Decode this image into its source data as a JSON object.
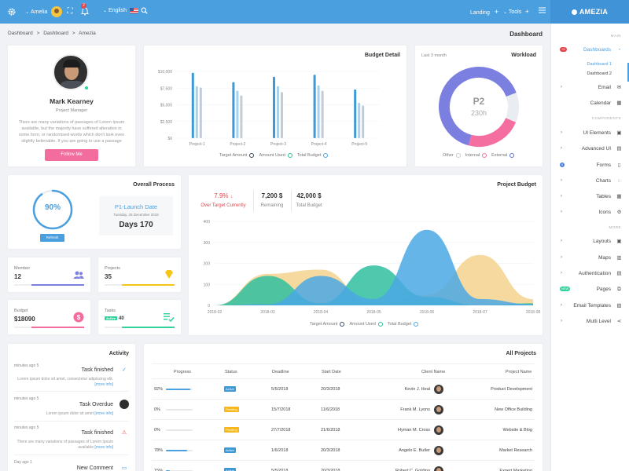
{
  "topbar": {
    "user_name": "Amelia",
    "notification_count": "2",
    "language": "English",
    "landing": "Landing",
    "tools": "Tools",
    "brand": "AMEZIA"
  },
  "breadcrumb": [
    "Dashboard",
    ">",
    "Dashboard",
    ">",
    "Amezia"
  ],
  "page_title": "Dashboard",
  "profile": {
    "name": "Mark Kearney",
    "role": "Project Manager",
    "description": "There are many variations of passages of Lorem Ipsum available, but the majority have suffered alteration in some form, or randomised words which don't look even slightly believable. If you are going to use a passage",
    "follow_label": "Follow Me"
  },
  "budget_detail": {
    "title": "Budget Detail",
    "legend": [
      "Target Amount",
      "Amount Used",
      "Total Budget"
    ],
    "colors": {
      "target": "#3d9ad6",
      "used": "#a9d2ec",
      "total": "#c3ccd6"
    }
  },
  "chart_data": [
    {
      "type": "bar",
      "title": "Budget Detail",
      "categories": [
        "Project-1",
        "Project-2",
        "Project-3",
        "Project-4",
        "Project-5"
      ],
      "ylim": [
        0,
        10000
      ],
      "yticks": [
        "$0",
        "$2,500",
        "$5,000",
        "$7,500",
        "$10,000"
      ],
      "series": [
        {
          "name": "Target Amount",
          "values": [
            9800,
            8400,
            9200,
            9500,
            7300
          ]
        },
        {
          "name": "Amount Used",
          "values": [
            7800,
            7100,
            7800,
            7900,
            5300
          ]
        },
        {
          "name": "Total Budget",
          "values": [
            7600,
            6400,
            6900,
            7100,
            4900
          ]
        }
      ]
    },
    {
      "type": "pie",
      "title": "Workload",
      "subtitle": "Last 3 month",
      "center_label": "P2",
      "center_sub": "230h",
      "series": [
        {
          "name": "Other",
          "values": [
            65
          ],
          "color": "#7a7fe0"
        },
        {
          "name": "Internal",
          "values": [
            12
          ],
          "color": "#e9ecf1"
        },
        {
          "name": "External",
          "values": [
            23
          ],
          "color": "#f46fa0"
        }
      ]
    },
    {
      "type": "area",
      "title": "Project Budget",
      "x": [
        "2018-02",
        "2018-03",
        "2018-04",
        "2018-05",
        "2018-06",
        "2018-07",
        "2018-08"
      ],
      "ylim": [
        0,
        400
      ],
      "yticks": [
        "0",
        "100",
        "200",
        "300",
        "400"
      ],
      "series": [
        {
          "name": "Target Amount",
          "values": [
            0,
            150,
            170,
            0,
            50,
            240,
            30
          ],
          "color": "#f4d28d"
        },
        {
          "name": "Amount Used",
          "values": [
            0,
            140,
            10,
            190,
            40,
            0,
            10
          ],
          "color": "#2fbf9f"
        },
        {
          "name": "Total Budget",
          "values": [
            0,
            5,
            140,
            30,
            360,
            30,
            5
          ],
          "color": "#4aa8e4"
        }
      ]
    }
  ],
  "workload": {
    "title": "Workload",
    "subtitle": "Last 3 month",
    "center_label": "P2",
    "center_sub": "230h",
    "legend": [
      "Other",
      "Internal",
      "External"
    ]
  },
  "overall_process": {
    "title": "Overall Process",
    "percent_label": "90%",
    "percent": 90,
    "refresh_label": "Refresh",
    "launch_title": "P1-Launch Date",
    "launch_date": "Tuesday, 25 December 2018",
    "launch_days": "Days 170"
  },
  "stats": {
    "member": {
      "label": "Member",
      "value": "12",
      "color": "#7a7fe0",
      "fill": 0.75
    },
    "projects": {
      "label": "Projects",
      "value": "35",
      "color": "#f5c518",
      "fill": 0.75
    },
    "budget": {
      "label": "Budget",
      "value": "$18090",
      "color": "#f26d9e",
      "fill": 0.75
    },
    "tasks": {
      "label": "Tasks",
      "badge": "Active",
      "value": "40",
      "color": "#2fd29a",
      "fill": 0.75
    }
  },
  "project_budget": {
    "title": "Project Budget",
    "over_target_value": "7.9%",
    "over_target_label": "Over Target Currently",
    "remaining_value": "7,200 $",
    "remaining_label": "Remaining",
    "total_value": "42,000 $",
    "total_label": "Total Budget",
    "legend": [
      "Target Amount",
      "Amount Used",
      "Total Budget"
    ]
  },
  "activity": {
    "title": "Activity",
    "items": [
      {
        "time": "minutes ago 5",
        "title": "Task finished",
        "desc": "Lorem ipsum dolor sit amet, consectetur adipiscing elit.",
        "more": "[more info]",
        "icon": "check-icon"
      },
      {
        "time": "minutes ago 5",
        "title": "Task Overdue",
        "desc": "Lorem ipsum dolor sit amet",
        "more": "[more info]",
        "icon": "user-icon"
      },
      {
        "time": "minutes ago 5",
        "title": "Task finished",
        "desc": "There are many variations of passages of Lorem Ipsum available",
        "more": "[more info]",
        "icon": "warning-icon"
      },
      {
        "time": "Day ago 1",
        "title": "New Comment",
        "desc": "",
        "more": "",
        "icon": "comment-icon"
      }
    ]
  },
  "all_projects": {
    "title": "All Projects",
    "columns": [
      "Progress",
      "Status",
      "Deadline",
      "Start Date",
      "Client Name",
      "Project Name"
    ],
    "rows": [
      {
        "progress": "92%",
        "pct": 92,
        "status": "Active",
        "status_color": "#3d9ad6",
        "deadline": "5/5/2018",
        "start": "20/3/2018",
        "client": "Kevin J. Heal",
        "project": "Product Development"
      },
      {
        "progress": "0%",
        "pct": 0,
        "status": "Pending",
        "status_color": "#f5b71a",
        "deadline": "15/7/2018",
        "start": "11/6/2018",
        "client": "Frank M. Lyons",
        "project": "New Office Building"
      },
      {
        "progress": "0%",
        "pct": 0,
        "status": "Pending",
        "status_color": "#f5b71a",
        "deadline": "27/7/2018",
        "start": "21/6/2018",
        "client": "Hyman M. Cross",
        "project": "Website & Blog"
      },
      {
        "progress": "78%",
        "pct": 78,
        "status": "Active",
        "status_color": "#3d9ad6",
        "deadline": "1/6/2018",
        "start": "20/3/2018",
        "client": "Angelo E. Butler",
        "project": "Market Research"
      },
      {
        "progress": "15%",
        "pct": 15,
        "status": "Active",
        "status_color": "#3d9ad6",
        "deadline": "5/5/2018",
        "start": "20/3/2018",
        "client": "Robert C. Golding",
        "project": "Expert Marketing"
      }
    ]
  },
  "sidebar": {
    "main_label": "MAIN",
    "components_label": "COMPONENTS",
    "more_label": "MORE",
    "dashboards_badge": "+9",
    "dashboards": "Dashboards",
    "dashboard1": "Dashboard 1",
    "dashboard2": "Dashboard 2",
    "email": "Email",
    "calendar": "Calendar",
    "ui_elements": "UI Elements",
    "advanced_ui": "Advanced UI",
    "forms_badge": "6",
    "forms": "Forms",
    "charts": "Charts",
    "tables": "Tables",
    "icons": "Icons",
    "layouts": "Layouts",
    "maps": "Maps",
    "authentication": "Authentication",
    "pages_badge": "NEW",
    "pages": "Pages",
    "email_templates": "Email Templates",
    "multi_level": "Multi Level"
  }
}
